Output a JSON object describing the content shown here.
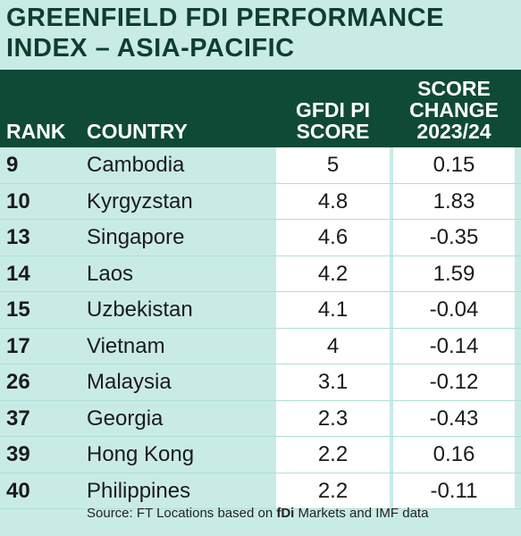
{
  "title": {
    "line1": "GREENFIELD FDI PERFORMANCE",
    "line2": "INDEX – ASIA-PACIFIC"
  },
  "columns": {
    "rank": "RANK",
    "country": "COUNTRY",
    "score_line1": "GFDI PI",
    "score_line2": "SCORE",
    "change_line1": "SCORE",
    "change_line2": "CHANGE",
    "change_line3": "2023/24"
  },
  "rows": [
    {
      "rank": "9",
      "country": "Cambodia",
      "score": "5",
      "change": "0.15"
    },
    {
      "rank": "10",
      "country": "Kyrgyzstan",
      "score": "4.8",
      "change": "1.83"
    },
    {
      "rank": "13",
      "country": "Singapore",
      "score": "4.6",
      "change": "-0.35"
    },
    {
      "rank": "14",
      "country": "Laos",
      "score": "4.2",
      "change": "1.59"
    },
    {
      "rank": "15",
      "country": "Uzbekistan",
      "score": "4.1",
      "change": "-0.04"
    },
    {
      "rank": "17",
      "country": "Vietnam",
      "score": "4",
      "change": "-0.14"
    },
    {
      "rank": "26",
      "country": "Malaysia",
      "score": "3.1",
      "change": "-0.12"
    },
    {
      "rank": "37",
      "country": "Georgia",
      "score": "2.3",
      "change": "-0.43"
    },
    {
      "rank": "39",
      "country": "Hong Kong",
      "score": "2.2",
      "change": "0.16"
    },
    {
      "rank": "40",
      "country": "Philippines",
      "score": "2.2",
      "change": "-0.11"
    }
  ],
  "source": {
    "prefix": "Source: FT Locations based on ",
    "brand": "fDi",
    "suffix": " Markets and IMF data"
  }
}
